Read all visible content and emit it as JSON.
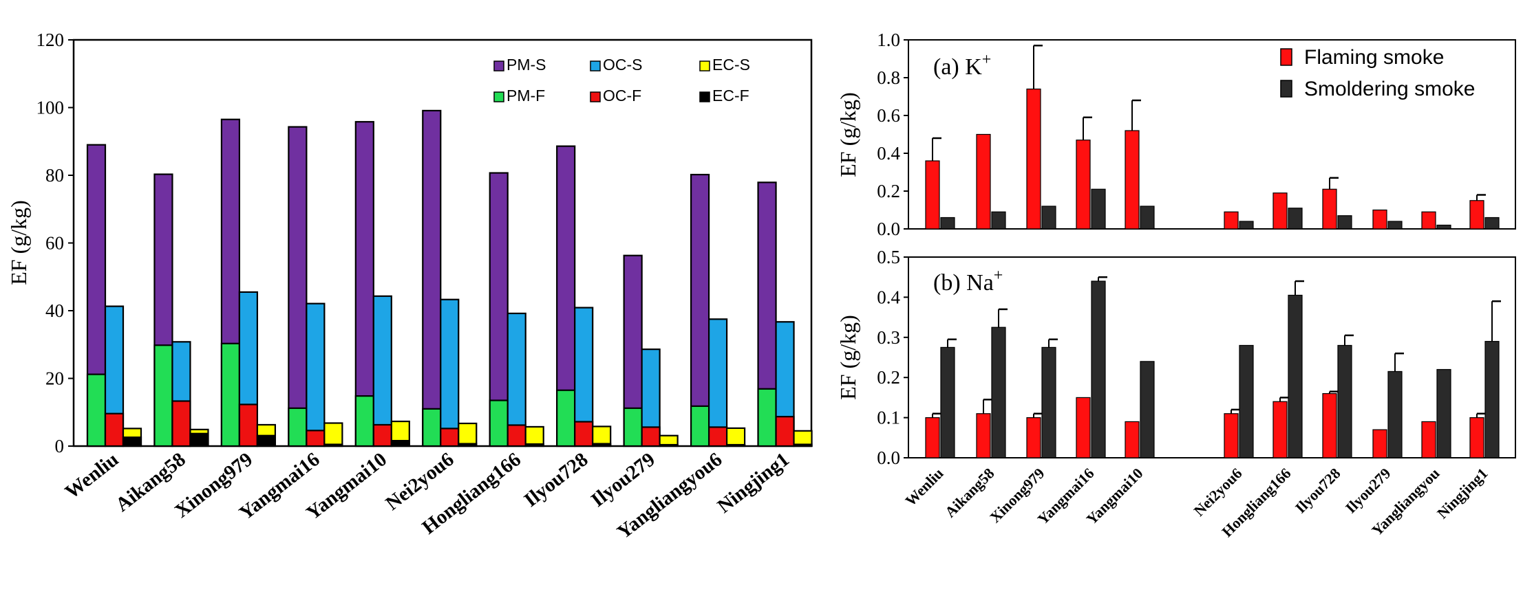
{
  "colors": {
    "pm_s": "#7030a0",
    "oc_s": "#1ea5e6",
    "ec_s": "#ffff00",
    "pm_f": "#22dd55",
    "oc_f": "#ee1111",
    "ec_f": "#000000",
    "flaming": "#ff1010",
    "smoldering": "#2a2a2a"
  },
  "chart_data": [
    {
      "type": "bar",
      "subtype": "grouped-overlapped",
      "title": "",
      "xlabel": "",
      "ylabel": "EF (g/kg)",
      "ylim": [
        0,
        120
      ],
      "yticks": [
        "0",
        "20",
        "40",
        "60",
        "80",
        "100",
        "120"
      ],
      "legend_placement": "top-right",
      "categories": [
        "Wenliu",
        "Aikang58",
        "Xinong979",
        "Yangmai16",
        "Yangmai10",
        "Nei2you6",
        "Hongliang166",
        "Ilyou728",
        "Ilyou279",
        "Yangliangyou6",
        "Ningjing1"
      ],
      "series": [
        {
          "name": "PM-S",
          "values": [
            89,
            80.3,
            96.5,
            94.3,
            95.8,
            99.1,
            80.7,
            88.6,
            56.3,
            80.2,
            77.9
          ]
        },
        {
          "name": "OC-S",
          "values": [
            41.3,
            30.8,
            45.5,
            42.1,
            44.3,
            43.3,
            39.2,
            40.9,
            28.6,
            37.5,
            36.7
          ]
        },
        {
          "name": "EC-S",
          "values": [
            5.2,
            4.9,
            6.3,
            6.8,
            7.3,
            6.7,
            5.7,
            5.8,
            3.1,
            5.3,
            4.5
          ]
        },
        {
          "name": "PM-F",
          "values": [
            21.2,
            29.8,
            30.3,
            11.2,
            14.8,
            11,
            13.5,
            16.5,
            11.2,
            11.8,
            16.9
          ]
        },
        {
          "name": "OC-F",
          "values": [
            9.6,
            13.3,
            12.3,
            4.6,
            6.3,
            5.2,
            6.2,
            7.2,
            5.6,
            5.6,
            8.7
          ]
        },
        {
          "name": "EC-F",
          "values": [
            2.6,
            3.7,
            3.1,
            0.5,
            1.6,
            0.7,
            0.6,
            0.7,
            0.4,
            0.4,
            0.5
          ]
        }
      ]
    },
    {
      "type": "bar",
      "title": "(a) K+",
      "title_main": "(a) K",
      "title_sup": "+",
      "xlabel": "",
      "ylabel": "EF (g/kg)",
      "ylim": [
        0,
        1.0
      ],
      "yticks": [
        "0.0",
        "0.2",
        "0.4",
        "0.6",
        "0.8",
        "1.0"
      ],
      "legend_placement": "top-right",
      "categories": [
        "Wenliu",
        "Aikang58",
        "Xinong979",
        "Yangmai16",
        "Yangmai10",
        "Nei2you6",
        "Hongliang166",
        "Ilyou728",
        "Ilyou279",
        "Yangliangyou",
        "Ningjing1"
      ],
      "series": [
        {
          "name": "Flaming smoke",
          "values": [
            0.36,
            0.5,
            0.74,
            0.47,
            0.52,
            0.09,
            0.19,
            0.21,
            0.1,
            0.09,
            0.15
          ],
          "errors": [
            0.12,
            0,
            0.23,
            0.12,
            0.16,
            0,
            0,
            0.06,
            0,
            0,
            0.03
          ]
        },
        {
          "name": "Smoldering smoke",
          "values": [
            0.06,
            0.09,
            0.12,
            0.21,
            0.12,
            0.04,
            0.11,
            0.07,
            0.04,
            0.02,
            0.06
          ],
          "errors": [
            0,
            0,
            0,
            0,
            0,
            0,
            0,
            0,
            0,
            0,
            0
          ]
        }
      ]
    },
    {
      "type": "bar",
      "title": "(b) Na+",
      "title_main": "(b) Na",
      "title_sup": "+",
      "xlabel": "",
      "ylabel": "EF (g/kg)",
      "ylim": [
        0,
        0.5
      ],
      "yticks": [
        "0.0",
        "0.1",
        "0.2",
        "0.3",
        "0.4",
        "0.5"
      ],
      "categories": [
        "Wenliu",
        "Aikang58",
        "Xinong979",
        "Yangmai16",
        "Yangmai10",
        "Nei2you6",
        "Hongliang166",
        "Ilyou728",
        "Ilyou279",
        "Yangliangyou",
        "Ningjing1"
      ],
      "series": [
        {
          "name": "Flaming smoke",
          "values": [
            0.1,
            0.11,
            0.1,
            0.15,
            0.09,
            0.11,
            0.14,
            0.16,
            0.07,
            0.09,
            0.1
          ],
          "errors": [
            0.01,
            0.035,
            0.01,
            0,
            0,
            0.01,
            0.01,
            0.005,
            0,
            0,
            0.01
          ]
        },
        {
          "name": "Smoldering smoke",
          "values": [
            0.275,
            0.325,
            0.275,
            0.44,
            0.24,
            0.28,
            0.405,
            0.28,
            0.215,
            0.22,
            0.29
          ],
          "errors": [
            0.02,
            0.045,
            0.02,
            0.01,
            0,
            0,
            0.035,
            0.025,
            0.045,
            0,
            0.1
          ]
        }
      ]
    }
  ]
}
